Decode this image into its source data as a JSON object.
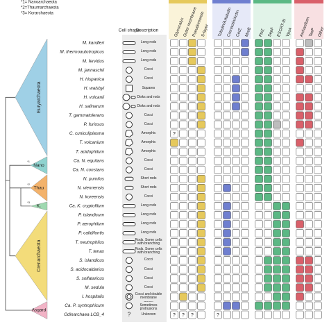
{
  "legend": [
    "*1= Nanoarchaeota",
    "*2=Thaumarchaeota",
    "*3= Korarchaeota"
  ],
  "headers": {
    "cell_shape": "Cell shape",
    "description": "Description"
  },
  "columns": [
    "Glycocalyx",
    "Outer membrane",
    "Pseudomurein",
    "S-layer",
    "Tubulin/Artubulin",
    "Crenactin/Actin",
    "CetZ",
    "MreB",
    "FtsZ",
    "SepF",
    "ESCRT-III",
    "Vps4",
    "Archaellum",
    "TasP",
    "Other"
  ],
  "clades": [
    {
      "label": "Euryarchaeota"
    },
    {
      "label": "Nano",
      "note": "*1"
    },
    {
      "label": "Thau",
      "note": "*2"
    },
    {
      "label": "K.",
      "note": "*3"
    },
    {
      "label": "Crenarchaeota"
    },
    {
      "label": "Asgard"
    }
  ],
  "rows": [
    {
      "name": "M. kandleri",
      "description": "Long rods",
      "cells": [
        0,
        0,
        1,
        0,
        0,
        0,
        0,
        1,
        1,
        1,
        0,
        0,
        0,
        2,
        0
      ]
    },
    {
      "name": "M. thermoautotropicus",
      "description": "Long rods",
      "cells": [
        0,
        0,
        1,
        0,
        0,
        0,
        0,
        1,
        1,
        1,
        0,
        0,
        1,
        0,
        0
      ]
    },
    {
      "name": "M. fervidus",
      "description": "Long rods",
      "cells": [
        0,
        0,
        1,
        0,
        0,
        0,
        0,
        0,
        1,
        1,
        0,
        0,
        1,
        0,
        0
      ]
    },
    {
      "name": "M. jannaschii",
      "description": "Cocci",
      "cells": [
        0,
        0,
        0,
        1,
        0,
        0,
        0,
        0,
        1,
        1,
        0,
        0,
        1,
        0,
        0
      ]
    },
    {
      "name": "H. hispanica",
      "description": "Cocci",
      "cells": [
        0,
        0,
        0,
        1,
        0,
        0,
        1,
        0,
        1,
        1,
        0,
        0,
        1,
        1,
        0
      ]
    },
    {
      "name": "H. walsbyi",
      "description": "Squares",
      "cells": [
        0,
        0,
        0,
        1,
        0,
        0,
        1,
        0,
        1,
        1,
        0,
        0,
        0,
        0,
        0
      ]
    },
    {
      "name": "H. volcanii",
      "description": "Disks and rods",
      "cells": [
        0,
        0,
        0,
        1,
        0,
        0,
        1,
        0,
        1,
        1,
        0,
        0,
        1,
        1,
        0
      ]
    },
    {
      "name": "H. salinarum",
      "description": "Disks and rods",
      "cells": [
        0,
        0,
        0,
        1,
        0,
        0,
        1,
        0,
        1,
        1,
        0,
        0,
        1,
        1,
        0
      ]
    },
    {
      "name": "T. gammatolerans",
      "description": "Cocci",
      "cells": [
        0,
        0,
        0,
        1,
        0,
        0,
        0,
        0,
        1,
        1,
        0,
        0,
        1,
        1,
        0
      ]
    },
    {
      "name": "P. furiosus",
      "description": "Cocci",
      "cells": [
        0,
        0,
        0,
        1,
        0,
        0,
        0,
        0,
        1,
        1,
        2,
        0,
        1,
        1,
        0
      ]
    },
    {
      "name": "C. cuniculiplasma",
      "description": "Amorphic",
      "cells": [
        "?",
        0,
        0,
        0,
        0,
        0,
        0,
        0,
        1,
        1,
        0,
        0,
        0,
        0,
        0
      ]
    },
    {
      "name": "T. volcanium",
      "description": "Amorphic",
      "cells": [
        1,
        0,
        0,
        0,
        0,
        0,
        0,
        0,
        1,
        1,
        0,
        0,
        1,
        0,
        0
      ]
    },
    {
      "name": "T. acidophilum",
      "description": "Amorphic",
      "cells": [
        0,
        0,
        0,
        0,
        0,
        0,
        0,
        0,
        1,
        1,
        0,
        0,
        0,
        0,
        0
      ]
    },
    {
      "name": "Ca. N. equitans",
      "description": "Cocci",
      "cells": [
        0,
        0,
        0,
        0,
        0,
        0,
        0,
        0,
        1,
        1,
        0,
        0,
        0,
        0,
        0
      ]
    },
    {
      "name": "Ca. N. constans",
      "description": "Cocci",
      "cells": [
        0,
        0,
        0,
        0,
        0,
        0,
        0,
        0,
        1,
        1,
        0,
        0,
        0,
        0,
        0
      ]
    },
    {
      "name": "N. pumilus",
      "description": "Short rods",
      "cells": [
        0,
        0,
        0,
        1,
        0,
        0,
        0,
        0,
        1,
        1,
        0,
        0,
        0,
        0,
        0
      ]
    },
    {
      "name": "N. viennensis",
      "description": "Short rods",
      "cells": [
        0,
        0,
        0,
        1,
        0,
        1,
        0,
        0,
        1,
        1,
        0,
        0,
        0,
        0,
        0
      ]
    },
    {
      "name": "N. koreensis",
      "description": "Cocci",
      "cells": [
        0,
        0,
        0,
        1,
        0,
        0,
        0,
        0,
        1,
        1,
        0,
        0,
        0,
        0,
        0
      ]
    },
    {
      "name": "Ca. K. cryptofilum",
      "description": "Long rods",
      "cells": [
        0,
        0,
        0,
        1,
        0,
        1,
        0,
        0,
        0,
        0,
        1,
        1,
        0,
        0,
        0
      ]
    },
    {
      "name": "P. islandicum",
      "description": "Long rods",
      "cells": [
        0,
        0,
        0,
        1,
        0,
        1,
        0,
        0,
        0,
        0,
        1,
        1,
        0,
        0,
        0
      ]
    },
    {
      "name": "P. aerophilum",
      "description": "Long rods",
      "cells": [
        0,
        0,
        0,
        1,
        0,
        1,
        0,
        0,
        0,
        0,
        1,
        1,
        1,
        0,
        0
      ]
    },
    {
      "name": "P. calidifontis",
      "description": "Long rods",
      "cells": [
        0,
        0,
        0,
        1,
        0,
        1,
        0,
        0,
        0,
        0,
        1,
        1,
        0,
        0,
        0
      ]
    },
    {
      "name": "T. neutrophilus",
      "description": "Rods. Some cells with branching",
      "cells": [
        0,
        0,
        0,
        1,
        0,
        1,
        0,
        0,
        0,
        0,
        1,
        1,
        0,
        0,
        0
      ]
    },
    {
      "name": "T. tenax",
      "description": "Rods. Some cells with branching",
      "cells": [
        0,
        0,
        0,
        1,
        0,
        1,
        0,
        0,
        0,
        0,
        1,
        1,
        0,
        0,
        0
      ]
    },
    {
      "name": "S. islandicus",
      "description": "Cocci",
      "cells": [
        0,
        0,
        0,
        1,
        0,
        0,
        0,
        0,
        0,
        1,
        1,
        1,
        1,
        1,
        0
      ]
    },
    {
      "name": "S. acidocaldarius",
      "description": "Cocci",
      "cells": [
        0,
        0,
        0,
        1,
        0,
        0,
        0,
        0,
        0,
        1,
        1,
        1,
        1,
        1,
        0
      ]
    },
    {
      "name": "S. solfataricus",
      "description": "Cocci",
      "cells": [
        0,
        0,
        0,
        1,
        0,
        0,
        0,
        0,
        0,
        1,
        1,
        1,
        1,
        1,
        0
      ]
    },
    {
      "name": "M. sedula",
      "description": "Cocci",
      "cells": [
        0,
        0,
        0,
        1,
        0,
        0,
        0,
        0,
        0,
        1,
        1,
        1,
        1,
        1,
        0
      ]
    },
    {
      "name": "I. hospitalis",
      "description": "Cocci and double membrane",
      "cells": [
        0,
        1,
        0,
        0,
        0,
        0,
        0,
        0,
        0,
        0,
        1,
        1,
        1,
        0,
        0
      ]
    },
    {
      "name": "Ca. P. syntrophicum",
      "description": "Cocci. Sometimes protrusions",
      "cells": [
        0,
        0,
        0,
        0,
        0,
        1,
        1,
        0,
        1,
        1,
        1,
        1,
        0,
        0,
        0
      ]
    },
    {
      "name": "Odinarchaea LCB_4",
      "description": "Unknown",
      "shape_text": "?",
      "cells": [
        "?",
        "?",
        "?",
        0,
        "?",
        0,
        0,
        0,
        0,
        0,
        0,
        0,
        0,
        0,
        0
      ]
    }
  ]
}
